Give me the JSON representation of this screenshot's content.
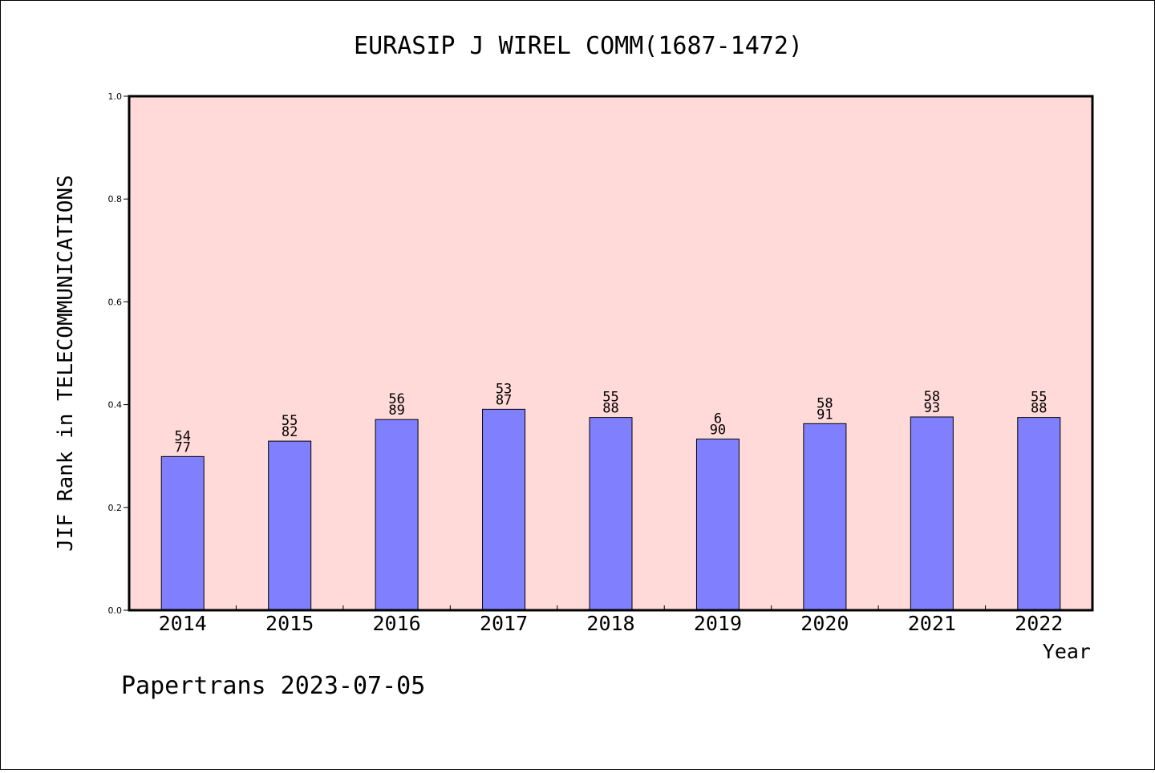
{
  "chart_data": {
    "type": "bar",
    "title": "EURASIP J WIREL COMM(1687-1472)",
    "xlabel": "Year",
    "ylabel": "JIF Rank in TELECOMMUNICATIONS",
    "ylim": [
      0,
      1.0
    ],
    "yticks": [
      "0.0",
      "0.2",
      "0.4",
      "0.6",
      "0.8",
      "1.0"
    ],
    "categories": [
      "2014",
      "2015",
      "2016",
      "2017",
      "2018",
      "2019",
      "2020",
      "2021",
      "2022"
    ],
    "values": [
      0.299,
      0.329,
      0.371,
      0.391,
      0.375,
      0.333,
      0.363,
      0.376,
      0.375
    ],
    "labels_top": [
      "54",
      "55",
      "56",
      "53",
      "55",
      "6",
      "58",
      "58",
      "55"
    ],
    "labels_bottom": [
      "77",
      "82",
      "89",
      "87",
      "88",
      "90",
      "91",
      "93",
      "88"
    ],
    "grid": false,
    "colors": {
      "plot_background": "#ffdad8",
      "bar_fill": "#8080ff",
      "bar_stroke": "#000000"
    }
  },
  "footer": "Papertrans 2023-07-05"
}
